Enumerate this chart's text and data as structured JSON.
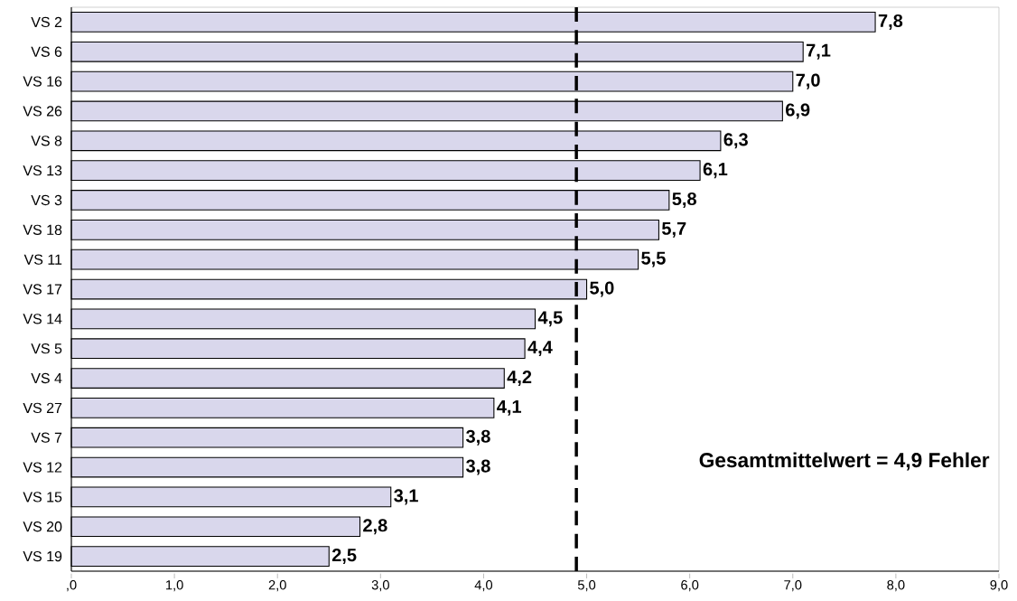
{
  "chart_data": {
    "type": "bar",
    "orientation": "horizontal",
    "categories": [
      "VS 2",
      "VS 6",
      "VS 16",
      "VS 26",
      "VS 8",
      "VS 13",
      "VS 3",
      "VS 18",
      "VS 11",
      "VS 17",
      "VS 14",
      "VS 5",
      "VS 4",
      "VS 27",
      "VS 7",
      "VS 12",
      "VS 15",
      "VS 20",
      "VS 19"
    ],
    "values": [
      7.8,
      7.1,
      7.0,
      6.9,
      6.3,
      6.1,
      5.8,
      5.7,
      5.5,
      5.0,
      4.5,
      4.4,
      4.2,
      4.1,
      3.8,
      3.8,
      3.1,
      2.8,
      2.5
    ],
    "value_labels": [
      "7,8",
      "7,1",
      "7,0",
      "6,9",
      "6,3",
      "6,1",
      "5,8",
      "5,7",
      "5,5",
      "5,0",
      "4,5",
      "4,4",
      "4,2",
      "4,1",
      "3,8",
      "3,8",
      "3,1",
      "2,8",
      "2,5"
    ],
    "color": "#d9d7ec",
    "xlim": [
      0,
      9
    ],
    "xticks": [
      {
        "value": 0,
        "label": ",0"
      },
      {
        "value": 1,
        "label": "1,0"
      },
      {
        "value": 2,
        "label": "2,0"
      },
      {
        "value": 3,
        "label": "3,0"
      },
      {
        "value": 4,
        "label": "4,0"
      },
      {
        "value": 5,
        "label": "5,0"
      },
      {
        "value": 6,
        "label": "6,0"
      },
      {
        "value": 7,
        "label": "7,0"
      },
      {
        "value": 8,
        "label": "8,0"
      },
      {
        "value": 9,
        "label": "9,0"
      }
    ],
    "ref_lines": [
      {
        "axis": "x",
        "value": 4.9,
        "label": "Gesamtmittelwert = 4,9 Fehler",
        "color": "#000000",
        "line_style": "dashed"
      }
    ],
    "grid": false
  }
}
